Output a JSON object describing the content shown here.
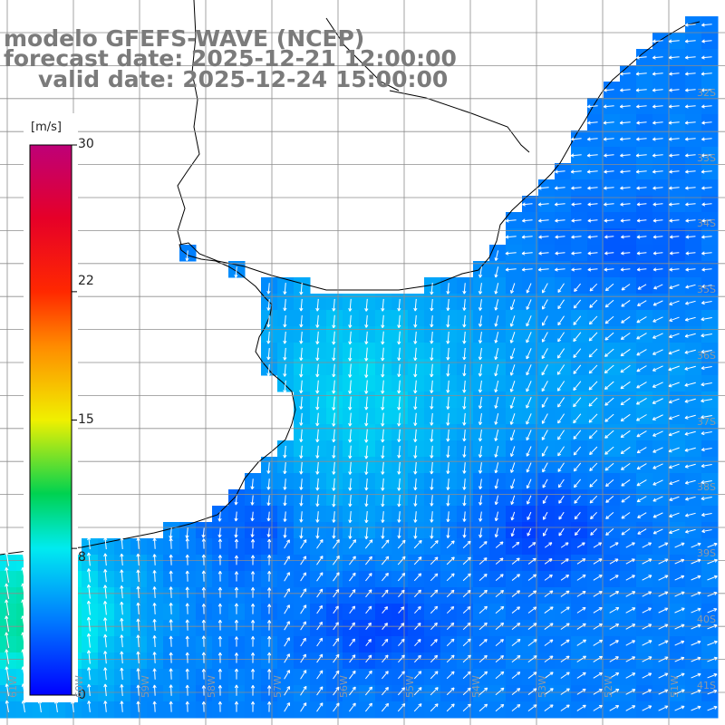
{
  "title": {
    "line1": "modelo GFEFS-WAVE (NCEP)",
    "line2": "forecast date: 2025-12-21 12:00:00",
    "line3": "valid date: 2025-12-24 15:00:00"
  },
  "colorbar": {
    "unit": "[m/s]",
    "ticks": [
      "30",
      "22",
      "15",
      "8",
      "0"
    ],
    "tick_values": [
      30,
      22,
      15,
      8,
      0
    ],
    "min": 0,
    "max": 30
  },
  "lat_labels": [
    "32S",
    "33S",
    "34S",
    "35S",
    "36S",
    "37S",
    "38S",
    "39S",
    "40S",
    "41S"
  ],
  "lon_labels": [
    "61W",
    "60W",
    "59W",
    "58W",
    "57W",
    "56W",
    "55W",
    "54W",
    "53W",
    "52W",
    "51W"
  ],
  "colors": {
    "land": "#ffffff",
    "grid": "#8d8d8d",
    "coast": "#000000",
    "arrow": "#ffffff",
    "title": "#7b7b7b",
    "low_wind": "#0030f0",
    "mid_wind": "#1ab0f0",
    "high_wind": "#2fe08a"
  },
  "icons": [
    "wind-arrow-icon"
  ]
}
